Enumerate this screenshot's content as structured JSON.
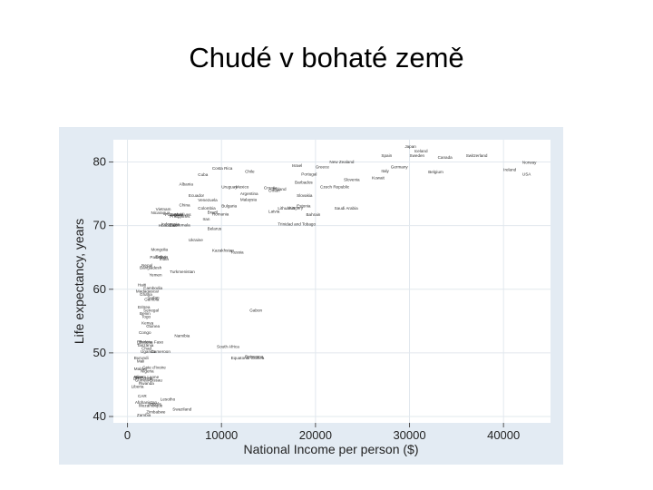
{
  "slide": {
    "title": "Chudé v bohaté země"
  },
  "chart_data": {
    "type": "scatter",
    "title": "",
    "xlabel": "National Income per person ($)",
    "ylabel": "Life expectancy, years",
    "xlim": [
      -1500,
      45000
    ],
    "ylim": [
      39,
      83.5
    ],
    "xticks": [
      0,
      10000,
      20000,
      30000,
      40000
    ],
    "yticks": [
      40,
      50,
      60,
      70,
      80
    ],
    "grid": true,
    "legend": "none",
    "colors": {
      "frame": "#e3ebf3",
      "plot": "#ffffff",
      "grid": "#e2e8ee",
      "text": "#333333"
    },
    "points": [
      {
        "label": "Japan",
        "x": 29500,
        "y": 82.2
      },
      {
        "label": "Iceland",
        "x": 30500,
        "y": 81.5
      },
      {
        "label": "Spain",
        "x": 27000,
        "y": 80.8
      },
      {
        "label": "Sweden",
        "x": 30000,
        "y": 80.8
      },
      {
        "label": "Switzerland",
        "x": 36000,
        "y": 80.8
      },
      {
        "label": "New Zealand",
        "x": 21500,
        "y": 79.8
      },
      {
        "label": "Canada",
        "x": 33000,
        "y": 80.5
      },
      {
        "label": "Norway",
        "x": 42000,
        "y": 79.7
      },
      {
        "label": "Israel",
        "x": 17500,
        "y": 79.2
      },
      {
        "label": "Greece",
        "x": 20000,
        "y": 79.0
      },
      {
        "label": "Germany",
        "x": 28000,
        "y": 79.0
      },
      {
        "label": "Italy",
        "x": 27000,
        "y": 78.4
      },
      {
        "label": "Ireland",
        "x": 40000,
        "y": 78.6
      },
      {
        "label": "USA",
        "x": 42000,
        "y": 77.9
      },
      {
        "label": "Costa Rica",
        "x": 9000,
        "y": 78.8
      },
      {
        "label": "Cuba",
        "x": 7500,
        "y": 77.8
      },
      {
        "label": "Chile",
        "x": 12500,
        "y": 78.3
      },
      {
        "label": "Portugal",
        "x": 18500,
        "y": 77.9
      },
      {
        "label": "Belgium",
        "x": 32000,
        "y": 78.2
      },
      {
        "label": "Kuwait",
        "x": 26000,
        "y": 77.3
      },
      {
        "label": "Slovenia",
        "x": 23000,
        "y": 77.0
      },
      {
        "label": "Barbados",
        "x": 17800,
        "y": 76.6
      },
      {
        "label": "Czech Republic",
        "x": 20500,
        "y": 75.9
      },
      {
        "label": "Uruguay",
        "x": 10000,
        "y": 75.9
      },
      {
        "label": "Albania",
        "x": 5500,
        "y": 76.3
      },
      {
        "label": "Mexico",
        "x": 11500,
        "y": 75.9
      },
      {
        "label": "Poland",
        "x": 15500,
        "y": 75.5
      },
      {
        "label": "Croatia",
        "x": 14500,
        "y": 75.7
      },
      {
        "label": "Argentina",
        "x": 12000,
        "y": 74.8
      },
      {
        "label": "Slovakia",
        "x": 18000,
        "y": 74.5
      },
      {
        "label": "Ecuador",
        "x": 6500,
        "y": 74.5
      },
      {
        "label": "Venezuela",
        "x": 7500,
        "y": 73.8
      },
      {
        "label": "Malaysia",
        "x": 12000,
        "y": 73.9
      },
      {
        "label": "Estonia",
        "x": 18000,
        "y": 72.9
      },
      {
        "label": "Oman",
        "x": 15000,
        "y": 75.3
      },
      {
        "label": "China",
        "x": 5500,
        "y": 73.0
      },
      {
        "label": "Bulgaria",
        "x": 10000,
        "y": 72.9
      },
      {
        "label": "Lithuania",
        "x": 16000,
        "y": 72.5
      },
      {
        "label": "Latvia",
        "x": 15000,
        "y": 72.0
      },
      {
        "label": "Saudi Arabia",
        "x": 22000,
        "y": 72.5
      },
      {
        "label": "Hungary",
        "x": 17000,
        "y": 72.6
      },
      {
        "label": "Maldives",
        "x": 5000,
        "y": 71.5
      },
      {
        "label": "Brazil",
        "x": 8500,
        "y": 71.9
      },
      {
        "label": "Colombia",
        "x": 7500,
        "y": 72.5
      },
      {
        "label": "Bahrain",
        "x": 19000,
        "y": 71.5
      },
      {
        "label": "Vietnam",
        "x": 3000,
        "y": 72.4
      },
      {
        "label": "Nicaragua",
        "x": 2500,
        "y": 71.8
      },
      {
        "label": "Philippines",
        "x": 4500,
        "y": 71.2
      },
      {
        "label": "Paraguay",
        "x": 4000,
        "y": 71.5
      },
      {
        "label": "Romania",
        "x": 9000,
        "y": 71.6
      },
      {
        "label": "Trinidad and Tobago",
        "x": 16000,
        "y": 70.0
      },
      {
        "label": "Indonesia",
        "x": 3600,
        "y": 70.0
      },
      {
        "label": "Honduras",
        "x": 3300,
        "y": 69.8
      },
      {
        "label": "Iran",
        "x": 8000,
        "y": 70.8
      },
      {
        "label": "Jordan",
        "x": 4500,
        "y": 71.5
      },
      {
        "label": "Belarus",
        "x": 8500,
        "y": 69.3
      },
      {
        "label": "Ukraine",
        "x": 6500,
        "y": 67.5
      },
      {
        "label": "Russia",
        "x": 11000,
        "y": 65.6
      },
      {
        "label": "Kazakhstan",
        "x": 9000,
        "y": 65.9
      },
      {
        "label": "Turkmenistan",
        "x": 4500,
        "y": 62.5
      },
      {
        "label": "Guatemala",
        "x": 4500,
        "y": 69.9
      },
      {
        "label": "Bolivia",
        "x": 3000,
        "y": 64.9
      },
      {
        "label": "Mongolia",
        "x": 2500,
        "y": 66.0
      },
      {
        "label": "India",
        "x": 3400,
        "y": 64.5
      },
      {
        "label": "Pakistan",
        "x": 2400,
        "y": 64.8
      },
      {
        "label": "Nepal",
        "x": 1500,
        "y": 63.5
      },
      {
        "label": "Bangladesh",
        "x": 1300,
        "y": 63.2
      },
      {
        "label": "Yemen",
        "x": 2300,
        "y": 62.0
      },
      {
        "label": "Cambodia",
        "x": 1700,
        "y": 60.0
      },
      {
        "label": "Madagascar",
        "x": 900,
        "y": 59.5
      },
      {
        "label": "Gabon",
        "x": 13000,
        "y": 56.5
      },
      {
        "label": "Sudan",
        "x": 2100,
        "y": 58.5
      },
      {
        "label": "Ghana",
        "x": 1300,
        "y": 59.0
      },
      {
        "label": "Haiti",
        "x": 1100,
        "y": 60.5
      },
      {
        "label": "Senegal",
        "x": 1700,
        "y": 56.5
      },
      {
        "label": "Kenya",
        "x": 1500,
        "y": 54.5
      },
      {
        "label": "Togo",
        "x": 1500,
        "y": 55.5
      },
      {
        "label": "Benin",
        "x": 1300,
        "y": 56.0
      },
      {
        "label": "Gambia",
        "x": 1800,
        "y": 58.2
      },
      {
        "label": "Eritrea",
        "x": 1100,
        "y": 57.0
      },
      {
        "label": "Namibia",
        "x": 5000,
        "y": 52.5
      },
      {
        "label": "South Africa",
        "x": 9500,
        "y": 50.8
      },
      {
        "label": "Botswana",
        "x": 12500,
        "y": 49.2
      },
      {
        "label": "Ethiopia",
        "x": 1000,
        "y": 51.5
      },
      {
        "label": "Tanzania",
        "x": 1000,
        "y": 51.0
      },
      {
        "label": "Chad",
        "x": 1500,
        "y": 50.5
      },
      {
        "label": "Uganda",
        "x": 1400,
        "y": 50.0
      },
      {
        "label": "Cameroon",
        "x": 2500,
        "y": 50.0
      },
      {
        "label": "Burkina Faso",
        "x": 1200,
        "y": 51.5
      },
      {
        "label": "Guinea",
        "x": 2000,
        "y": 54.0
      },
      {
        "label": "Burundi",
        "x": 700,
        "y": 49.0
      },
      {
        "label": "Mali",
        "x": 1000,
        "y": 48.5
      },
      {
        "label": "Niger",
        "x": 700,
        "y": 46.0
      },
      {
        "label": "Nigeria",
        "x": 1400,
        "y": 46.9
      },
      {
        "label": "Malawi",
        "x": 700,
        "y": 47.3
      },
      {
        "label": "Cote d'Ivoire",
        "x": 1600,
        "y": 47.5
      },
      {
        "label": "Equatorial Guinea",
        "x": 11000,
        "y": 49.0
      },
      {
        "label": "Rwanda",
        "x": 1200,
        "y": 45.0
      },
      {
        "label": "Sierra Leone",
        "x": 800,
        "y": 46.0
      },
      {
        "label": "Liberia",
        "x": 400,
        "y": 44.5
      },
      {
        "label": "CAR",
        "x": 1100,
        "y": 43.0
      },
      {
        "label": "Lesotho",
        "x": 3500,
        "y": 42.5
      },
      {
        "label": "Afghanistan",
        "x": 800,
        "y": 42.0
      },
      {
        "label": "Mozambique",
        "x": 1200,
        "y": 41.5
      },
      {
        "label": "Angola",
        "x": 2200,
        "y": 41.8
      },
      {
        "label": "Zimbabwe",
        "x": 2000,
        "y": 40.5
      },
      {
        "label": "Swaziland",
        "x": 4800,
        "y": 40.9
      },
      {
        "label": "Zambia",
        "x": 1000,
        "y": 40.0
      },
      {
        "label": "Guinea-Bissau",
        "x": 800,
        "y": 45.5
      },
      {
        "label": "Congo",
        "x": 1200,
        "y": 53.0
      },
      {
        "label": "DR Congo",
        "x": 600,
        "y": 45.8
      }
    ]
  }
}
